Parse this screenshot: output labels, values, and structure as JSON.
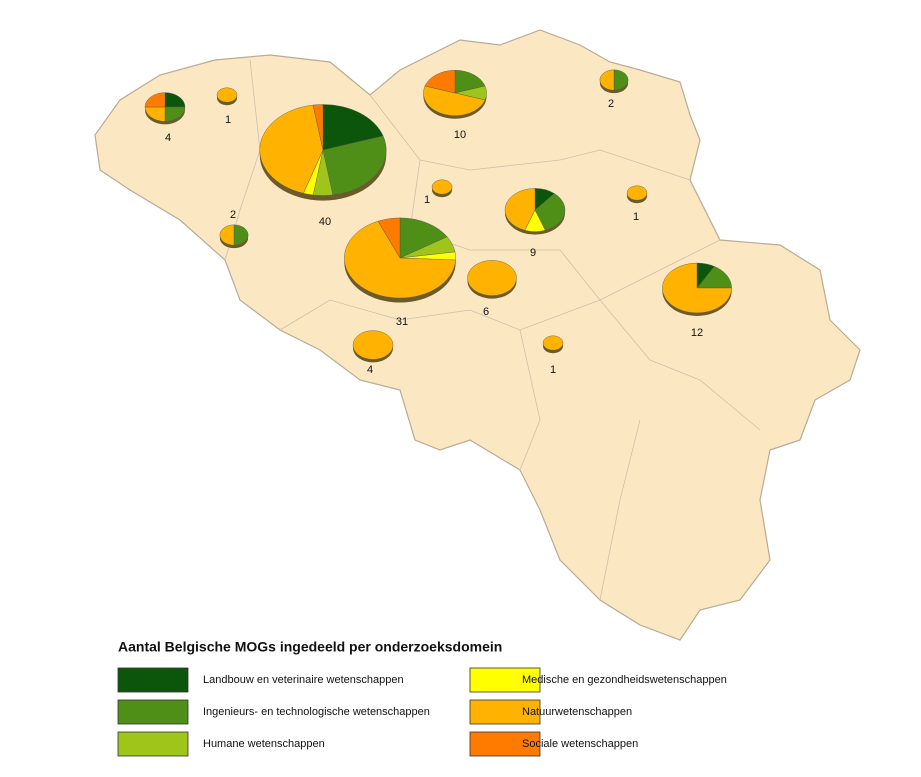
{
  "title": "Aantal Belgische MOGs ingedeeld per onderzoeksdomein",
  "legend": [
    {
      "name": "Landbouw en veterinaire wetenschappen",
      "color": "#0b560b"
    },
    {
      "name": "Ingenieurs- en technologische wetenschappen",
      "color": "#4f8e17"
    },
    {
      "name": "Humane wetenschappen",
      "color": "#9fc41a"
    },
    {
      "name": "Medische en gezondheidswetenschappen",
      "color": "#ffff00"
    },
    {
      "name": "Natuurwetenschappen",
      "color": "#ffb300"
    },
    {
      "name": "Sociale wetenschappen",
      "color": "#ff7b00"
    }
  ],
  "pies": [
    {
      "label": "40",
      "values": [
        8,
        11,
        2,
        1,
        17,
        1
      ]
    },
    {
      "label": "31",
      "values": [
        0,
        5,
        2,
        1,
        21,
        2
      ]
    },
    {
      "label": "12",
      "values": [
        1,
        2,
        0,
        0,
        9,
        0
      ]
    },
    {
      "label": "10",
      "values": [
        0,
        2,
        1,
        0,
        5,
        2
      ]
    },
    {
      "label": "9",
      "values": [
        1,
        3,
        0,
        1,
        4,
        0
      ]
    },
    {
      "label": "6",
      "values": [
        0,
        0,
        0,
        0,
        6,
        0
      ]
    },
    {
      "label": "4",
      "values": [
        1,
        1,
        0,
        0,
        1,
        1
      ]
    },
    {
      "label": "1",
      "values": [
        0,
        0,
        0,
        0,
        1,
        0
      ]
    },
    {
      "label": "2",
      "values": [
        0,
        1,
        0,
        0,
        1,
        0
      ]
    },
    {
      "label": "2",
      "values": [
        0,
        1,
        0,
        0,
        1,
        0
      ]
    },
    {
      "label": "1",
      "values": [
        0,
        0,
        0,
        0,
        1,
        0
      ]
    },
    {
      "label": "1",
      "values": [
        0,
        0,
        0,
        0,
        1,
        0
      ]
    },
    {
      "label": "4",
      "values": [
        0,
        0,
        0,
        0,
        4,
        0
      ]
    },
    {
      "label": "1",
      "values": [
        0,
        0,
        0,
        0,
        1,
        0
      ]
    }
  ]
}
